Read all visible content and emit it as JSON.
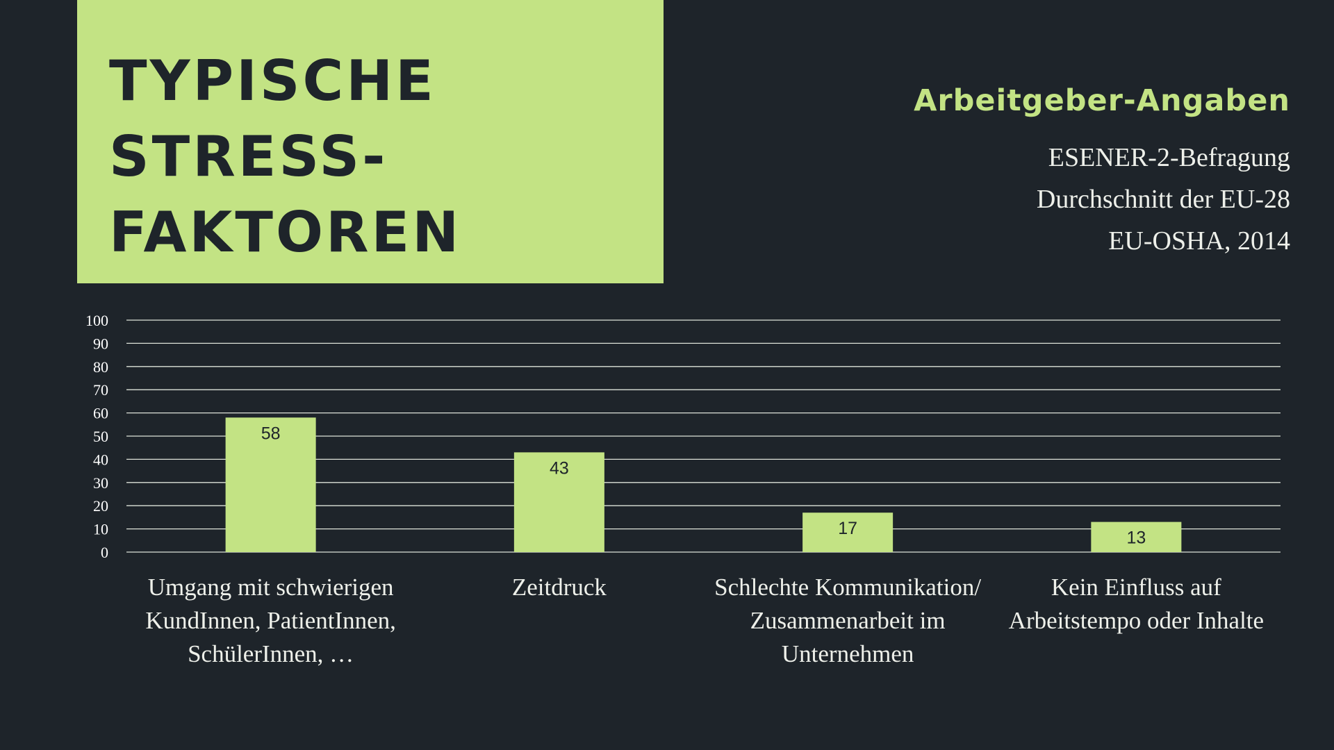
{
  "title": {
    "lines": [
      "TYPISCHE",
      "STRESS-",
      "FAKTOREN"
    ]
  },
  "source": {
    "heading": "Arbeitgeber-Angaben",
    "lines": [
      "ESENER-2-Befragung",
      "Durchschnitt der EU-28",
      "EU-OSHA, 2014"
    ]
  },
  "colors": {
    "background": "#1e242a",
    "accent": "#c3e384",
    "text": "#eef0ea",
    "gridline": "#dfe3da"
  },
  "chart_data": {
    "type": "bar",
    "categories": [
      [
        "Umgang mit schwierigen",
        "KundInnen, PatientInnen,",
        "SchülerInnen, …"
      ],
      [
        "Zeitdruck"
      ],
      [
        "Schlechte Kommunikation/",
        "Zusammenarbeit im",
        "Unternehmen"
      ],
      [
        "Kein Einfluss auf",
        "Arbeitstempo oder Inhalte"
      ]
    ],
    "values": [
      58,
      43,
      17,
      13
    ],
    "data_labels": [
      "58",
      "43",
      "17",
      "13"
    ],
    "ylim": [
      0,
      100
    ],
    "yticks": [
      0,
      10,
      20,
      30,
      40,
      50,
      60,
      70,
      80,
      90,
      100
    ],
    "grid": true,
    "bar_color": "#c3e384"
  }
}
